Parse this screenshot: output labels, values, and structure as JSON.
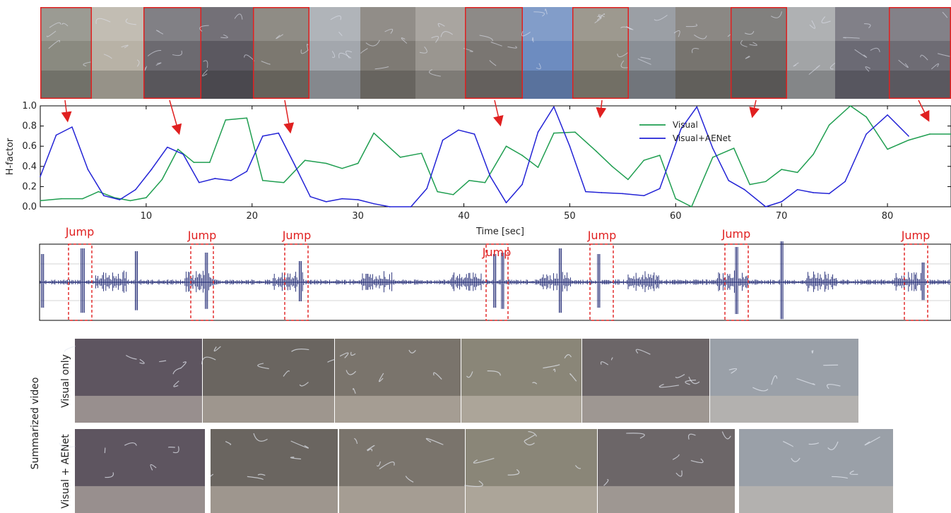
{
  "chart_data": {
    "type": "line",
    "xlabel": "Time [sec]",
    "ylabel": "H-factor",
    "xlim": [
      0,
      86
    ],
    "ylim": [
      0,
      1.0
    ],
    "xticks": [
      10,
      20,
      30,
      40,
      50,
      60,
      70,
      80
    ],
    "yticks": [
      0.0,
      0.2,
      0.4,
      0.6,
      0.8,
      1.0
    ],
    "grid": false,
    "legend_position": "top-right",
    "series": [
      {
        "name": "Visual",
        "color": "#1f9e50",
        "points": [
          [
            0,
            0.06
          ],
          [
            2,
            0.08
          ],
          [
            4,
            0.08
          ],
          [
            5.5,
            0.15
          ],
          [
            7,
            0.09
          ],
          [
            8.5,
            0.06
          ],
          [
            10,
            0.09
          ],
          [
            11.5,
            0.27
          ],
          [
            13,
            0.57
          ],
          [
            14.5,
            0.44
          ],
          [
            16,
            0.44
          ],
          [
            17.5,
            0.86
          ],
          [
            19.5,
            0.88
          ],
          [
            21,
            0.26
          ],
          [
            23,
            0.24
          ],
          [
            25,
            0.46
          ],
          [
            27,
            0.43
          ],
          [
            28.5,
            0.38
          ],
          [
            30,
            0.43
          ],
          [
            31.5,
            0.73
          ],
          [
            34,
            0.49
          ],
          [
            36,
            0.53
          ],
          [
            37.5,
            0.15
          ],
          [
            39,
            0.12
          ],
          [
            40.5,
            0.26
          ],
          [
            42,
            0.24
          ],
          [
            44,
            0.6
          ],
          [
            45.5,
            0.51
          ],
          [
            47,
            0.39
          ],
          [
            48.5,
            0.73
          ],
          [
            50.5,
            0.74
          ],
          [
            52.5,
            0.55
          ],
          [
            54,
            0.4
          ],
          [
            55.5,
            0.27
          ],
          [
            57,
            0.46
          ],
          [
            58.5,
            0.51
          ],
          [
            60,
            0.08
          ],
          [
            61.5,
            0.0
          ],
          [
            63.5,
            0.49
          ],
          [
            65.5,
            0.58
          ],
          [
            67,
            0.22
          ],
          [
            68.5,
            0.25
          ],
          [
            70,
            0.37
          ],
          [
            71.5,
            0.34
          ],
          [
            73,
            0.52
          ],
          [
            74.5,
            0.81
          ],
          [
            76.5,
            1.0
          ],
          [
            78,
            0.89
          ],
          [
            80,
            0.57
          ],
          [
            82,
            0.66
          ],
          [
            84,
            0.72
          ],
          [
            86,
            0.72
          ]
        ]
      },
      {
        "name": "Visual+AENet",
        "color": "#2323d6",
        "points": [
          [
            0,
            0.3
          ],
          [
            1.5,
            0.71
          ],
          [
            3,
            0.79
          ],
          [
            4.5,
            0.37
          ],
          [
            6,
            0.11
          ],
          [
            7.5,
            0.07
          ],
          [
            9,
            0.17
          ],
          [
            10.5,
            0.37
          ],
          [
            12,
            0.59
          ],
          [
            13.5,
            0.52
          ],
          [
            15,
            0.24
          ],
          [
            16.5,
            0.28
          ],
          [
            18,
            0.26
          ],
          [
            19.5,
            0.35
          ],
          [
            21,
            0.7
          ],
          [
            22.5,
            0.73
          ],
          [
            24,
            0.42
          ],
          [
            25.5,
            0.1
          ],
          [
            27,
            0.05
          ],
          [
            28.5,
            0.08
          ],
          [
            30,
            0.07
          ],
          [
            31.5,
            0.03
          ],
          [
            33,
            0.0
          ],
          [
            35,
            0.0
          ],
          [
            36.5,
            0.18
          ],
          [
            38,
            0.66
          ],
          [
            39.5,
            0.76
          ],
          [
            41,
            0.72
          ],
          [
            42.5,
            0.3
          ],
          [
            44,
            0.04
          ],
          [
            45.5,
            0.22
          ],
          [
            47,
            0.74
          ],
          [
            48.5,
            0.99
          ],
          [
            50,
            0.6
          ],
          [
            51.5,
            0.15
          ],
          [
            53,
            0.14
          ],
          [
            55,
            0.13
          ],
          [
            57,
            0.11
          ],
          [
            58.5,
            0.18
          ],
          [
            60.5,
            0.77
          ],
          [
            62,
            0.99
          ],
          [
            63.5,
            0.58
          ],
          [
            65,
            0.26
          ],
          [
            66.5,
            0.17
          ],
          [
            68.5,
            0.0
          ],
          [
            70,
            0.05
          ],
          [
            71.5,
            0.17
          ],
          [
            73,
            0.14
          ],
          [
            74.5,
            0.13
          ],
          [
            76,
            0.25
          ],
          [
            78,
            0.72
          ],
          [
            80,
            0.91
          ],
          [
            82,
            0.7
          ]
        ]
      }
    ],
    "annotations": [
      "Jump",
      "Jump",
      "Jump",
      "Jump",
      "Jump",
      "Jump",
      "Jump"
    ]
  },
  "side_labels": {
    "group": "Summarized video",
    "row1": "Visual only",
    "row2": "Visual + AENet"
  }
}
